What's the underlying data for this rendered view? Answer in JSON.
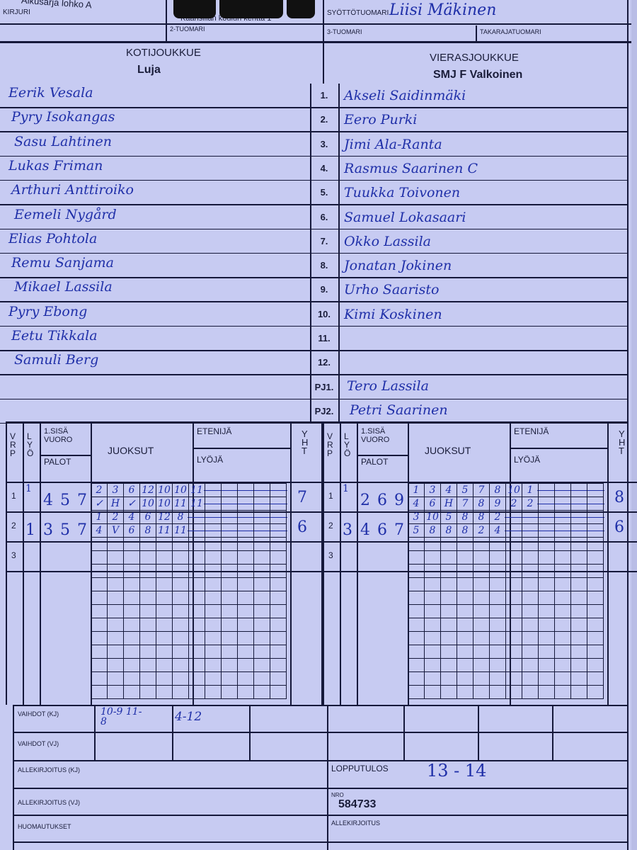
{
  "header": {
    "series": "Alkusarja lohko A",
    "scorer_label": "KIRJURI",
    "venue": "Kaarisillan koulun kenttä 1",
    "pitch_umpire_label": "SYÖTTÖTUOMARI",
    "pitch_umpire": "Liisi Mäkinen",
    "umpire2_label": "2-TUOMARI",
    "umpire3_label": "3-TUOMARI",
    "back_umpire_label": "TAKARAJATUOMARI"
  },
  "home": {
    "label": "KOTIJOUKKUE",
    "name": "Luja",
    "players": [
      "Eerik Vesala",
      "Pyry Isokangas",
      "Sasu Lahtinen",
      "Lukas Friman",
      "Arthuri Anttiroiko",
      "Eemeli Nygård",
      "Elias Pohtola",
      "Remu Sanjama",
      "Mikael Lassila",
      "Pyry Ebong",
      "Eetu Tikkala",
      "Samuli Berg"
    ]
  },
  "away": {
    "label": "VIERASJOUKKUE",
    "name": "SMJ F Valkoinen",
    "players": [
      "Akseli Saidinmäki",
      "Eero Purki",
      "Jimi Ala-Ranta",
      "Rasmus Saarinen    C",
      "Tuukka Toivonen",
      "Samuel Lokasaari",
      "Okko Lassila",
      "Jonatan Jokinen",
      "Urho Saaristo",
      "Kimi Koskinen",
      "",
      ""
    ],
    "pj1": "Tero Lassila",
    "pj2": "Petri Saarinen"
  },
  "numbers": [
    "1.",
    "2.",
    "3.",
    "4.",
    "5.",
    "6.",
    "7.",
    "8.",
    "9.",
    "10.",
    "11.",
    "12.",
    "PJ1.",
    "PJ2."
  ],
  "score_headers": {
    "vrp": "V R P",
    "lyo": "L Y Ö",
    "first_inning": "1.SISÄ VUORO",
    "outs": "PALOT",
    "runs": "JUOKSUT",
    "runner": "ETENIJÄ",
    "batter": "LYÖJÄ",
    "total": "Y H T"
  },
  "home_innings": [
    {
      "period": "1",
      "lyo": "1",
      "outs": [
        "4",
        "5",
        "7"
      ],
      "runner": [
        "2",
        "3",
        "6",
        "12",
        "10",
        "10",
        "11"
      ],
      "batter": [
        "✓",
        "H",
        "✓",
        "10",
        "10",
        "11",
        "11"
      ],
      "total": "7"
    },
    {
      "period": "2",
      "lyo": "1",
      "outs": [
        "3",
        "5",
        "7"
      ],
      "runner": [
        "1",
        "2",
        "4",
        "6",
        "12",
        "8"
      ],
      "batter": [
        "4",
        "V",
        "6",
        "8",
        "11",
        "11"
      ],
      "total": "6"
    },
    {
      "period": "3",
      "lyo": "",
      "outs": [
        "",
        "",
        ""
      ],
      "runner": [],
      "batter": [],
      "total": ""
    }
  ],
  "away_innings": [
    {
      "period": "1",
      "lyo": "1",
      "outs": [
        "2",
        "6",
        "9"
      ],
      "runner": [
        "1",
        "3",
        "4",
        "5",
        "7",
        "8",
        "10",
        "1"
      ],
      "batter": [
        "4",
        "6",
        "H",
        "7",
        "8",
        "9",
        "2",
        "2"
      ],
      "total": "8"
    },
    {
      "period": "2",
      "lyo": "3",
      "outs": [
        "4",
        "6",
        "7"
      ],
      "runner": [
        "3",
        "10",
        "5",
        "8",
        "8",
        "2"
      ],
      "batter": [
        "5",
        "8",
        "8",
        "8",
        "2",
        "4"
      ],
      "total": "6"
    },
    {
      "period": "3",
      "lyo": "",
      "outs": [
        "",
        "",
        ""
      ],
      "runner": [],
      "batter": [],
      "total": ""
    }
  ],
  "footer": {
    "subs_home_label": "VAIHDOT (KJ)",
    "subs_home": [
      "10-9 11-8",
      "4-12"
    ],
    "subs_away_label": "VAIHDOT (VJ)",
    "sign_home_label": "ALLEKIRJOITUS (KJ)",
    "sign_away_label": "ALLEKIRJOITUS (VJ)",
    "remarks_label": "HUOMAUTUKSET",
    "result_label": "LOPPUTULOS",
    "result": "13 - 14",
    "number_label": "NRO",
    "number": "584733",
    "signature_label": "ALLEKIRJOITUS"
  },
  "colors": {
    "paper": "#c7cbf2",
    "ink": "#1f2fa8",
    "lines": "#15183a"
  }
}
